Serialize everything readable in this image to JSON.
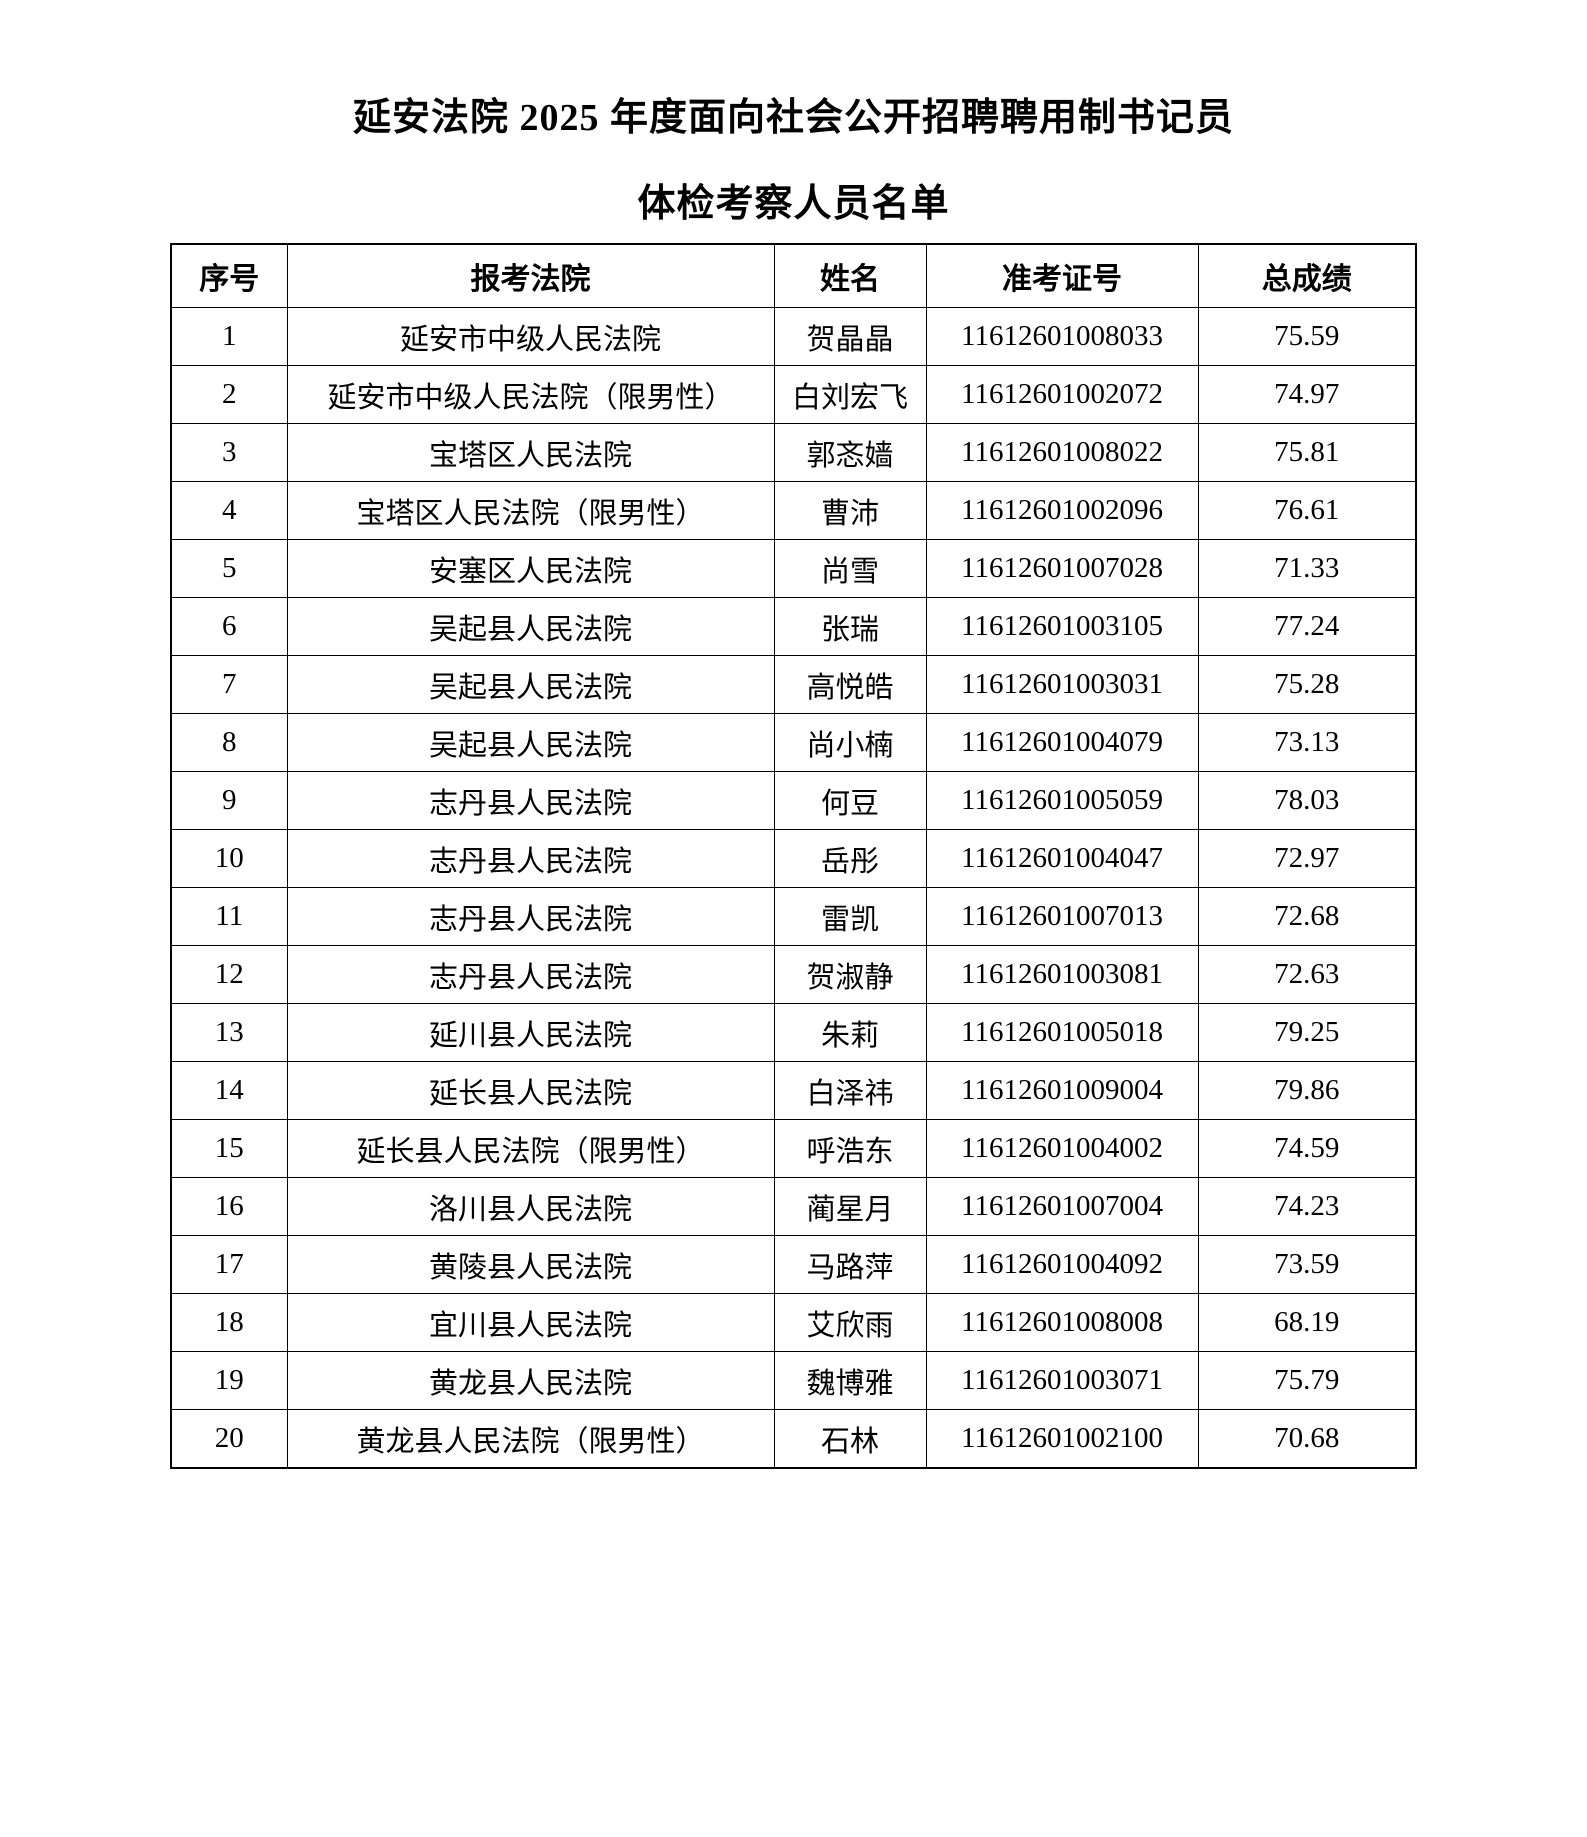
{
  "page": {
    "title_line1": "延安法院 2025 年度面向社会公开招聘聘用制书记员",
    "title_line2": "体检考察人员名单"
  },
  "table": {
    "columns": [
      "序号",
      "报考法院",
      "姓名",
      "准考证号",
      "总成绩"
    ],
    "rows": [
      {
        "no": "1",
        "court": "延安市中级人民法院",
        "name": "贺晶晶",
        "ticket": "11612601008033",
        "score": "75.59"
      },
      {
        "no": "2",
        "court": "延安市中级人民法院（限男性）",
        "name": "白刘宏飞",
        "ticket": "11612601002072",
        "score": "74.97"
      },
      {
        "no": "3",
        "court": "宝塔区人民法院",
        "name": "郭忞嫱",
        "ticket": "11612601008022",
        "score": "75.81"
      },
      {
        "no": "4",
        "court": "宝塔区人民法院（限男性）",
        "name": "曹沛",
        "ticket": "11612601002096",
        "score": "76.61"
      },
      {
        "no": "5",
        "court": "安塞区人民法院",
        "name": "尚雪",
        "ticket": "11612601007028",
        "score": "71.33"
      },
      {
        "no": "6",
        "court": "吴起县人民法院",
        "name": "张瑞",
        "ticket": "11612601003105",
        "score": "77.24"
      },
      {
        "no": "7",
        "court": "吴起县人民法院",
        "name": "高悦皓",
        "ticket": "11612601003031",
        "score": "75.28"
      },
      {
        "no": "8",
        "court": "吴起县人民法院",
        "name": "尚小楠",
        "ticket": "11612601004079",
        "score": "73.13"
      },
      {
        "no": "9",
        "court": "志丹县人民法院",
        "name": "何豆",
        "ticket": "11612601005059",
        "score": "78.03"
      },
      {
        "no": "10",
        "court": "志丹县人民法院",
        "name": "岳彤",
        "ticket": "11612601004047",
        "score": "72.97"
      },
      {
        "no": "11",
        "court": "志丹县人民法院",
        "name": "雷凯",
        "ticket": "11612601007013",
        "score": "72.68"
      },
      {
        "no": "12",
        "court": "志丹县人民法院",
        "name": "贺淑静",
        "ticket": "11612601003081",
        "score": "72.63"
      },
      {
        "no": "13",
        "court": "延川县人民法院",
        "name": "朱莉",
        "ticket": "11612601005018",
        "score": "79.25"
      },
      {
        "no": "14",
        "court": "延长县人民法院",
        "name": "白泽祎",
        "ticket": "11612601009004",
        "score": "79.86"
      },
      {
        "no": "15",
        "court": "延长县人民法院（限男性）",
        "name": "呼浩东",
        "ticket": "11612601004002",
        "score": "74.59"
      },
      {
        "no": "16",
        "court": "洛川县人民法院",
        "name": "蔺星月",
        "ticket": "11612601007004",
        "score": "74.23"
      },
      {
        "no": "17",
        "court": "黄陵县人民法院",
        "name": "马路萍",
        "ticket": "11612601004092",
        "score": "73.59"
      },
      {
        "no": "18",
        "court": "宜川县人民法院",
        "name": "艾欣雨",
        "ticket": "11612601008008",
        "score": "68.19"
      },
      {
        "no": "19",
        "court": "黄龙县人民法院",
        "name": "魏博雅",
        "ticket": "11612601003071",
        "score": "75.79"
      },
      {
        "no": "20",
        "court": "黄龙县人民法院（限男性）",
        "name": "石林",
        "ticket": "11612601002100",
        "score": "70.68"
      }
    ]
  }
}
